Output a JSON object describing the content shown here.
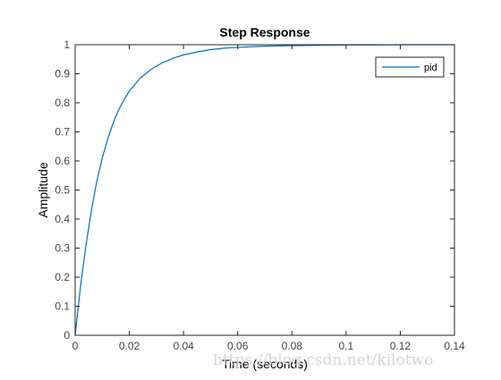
{
  "chart_data": {
    "type": "line",
    "title": "Step Response",
    "xlabel": "Time (seconds)",
    "ylabel": "Amplitude",
    "xlim": [
      0,
      0.14
    ],
    "ylim": [
      0,
      1
    ],
    "x_ticks": [
      "0",
      "0.02",
      "0.04",
      "0.06",
      "0.08",
      "0.1",
      "0.12",
      "0.14"
    ],
    "y_ticks": [
      "0",
      "0.1",
      "0.2",
      "0.3",
      "0.4",
      "0.5",
      "0.6",
      "0.7",
      "0.8",
      "0.9",
      "1"
    ],
    "grid": false,
    "legend_position": "top-right",
    "reference_line": {
      "y": 1,
      "style": "dotted"
    },
    "series": [
      {
        "name": "pid",
        "color": "#0072BD",
        "x": [
          0,
          0.002,
          0.004,
          0.006,
          0.008,
          0.01,
          0.012,
          0.014,
          0.016,
          0.018,
          0.02,
          0.024,
          0.028,
          0.032,
          0.036,
          0.04,
          0.045,
          0.05,
          0.055,
          0.06,
          0.07,
          0.08,
          0.09,
          0.1,
          0.11,
          0.12,
          0.13,
          0.14
        ],
        "y": [
          0,
          0.17,
          0.31,
          0.43,
          0.53,
          0.61,
          0.675,
          0.73,
          0.775,
          0.81,
          0.84,
          0.885,
          0.915,
          0.937,
          0.953,
          0.965,
          0.975,
          0.983,
          0.988,
          0.991,
          0.995,
          0.997,
          0.998,
          0.999,
          0.999,
          1.0,
          1.0,
          1.0
        ]
      }
    ]
  },
  "watermark": "https://blog.csdn.net/kilotwo"
}
